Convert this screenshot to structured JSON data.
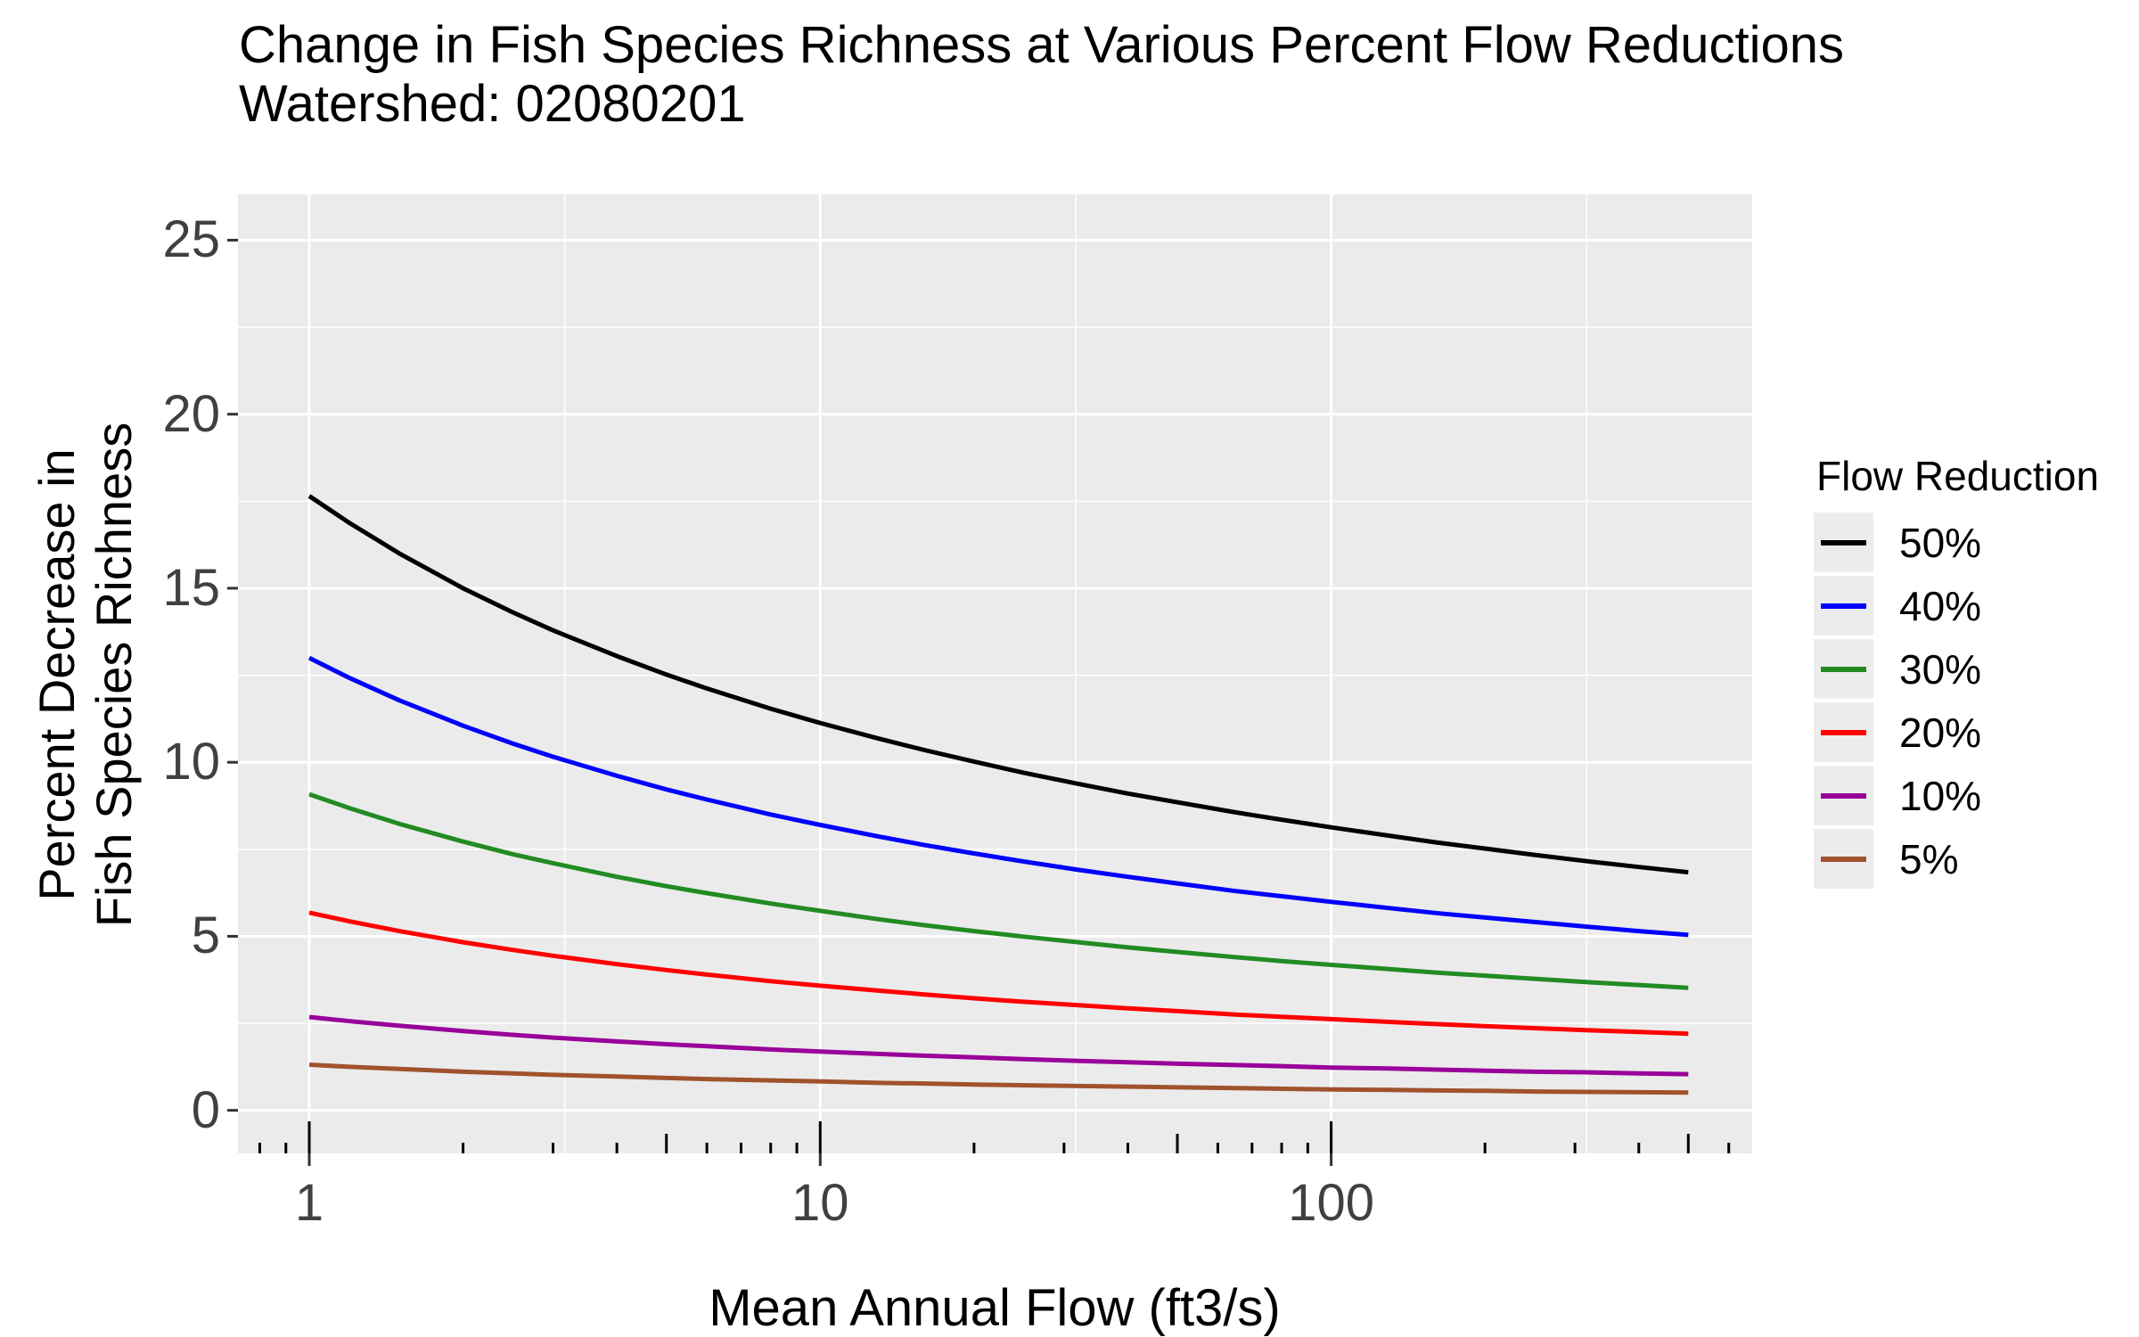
{
  "title": "Change in Fish Species Richness at Various Percent Flow Reductions",
  "subtitle": "Watershed: 02080201",
  "x_axis": {
    "label": "Mean Annual Flow (ft3/s)",
    "scale": "log10",
    "tick_labels": [
      "1",
      "10",
      "100"
    ],
    "tick_values": [
      1,
      10,
      100
    ],
    "minor_gridline_values": [
      3.1623,
      31.623,
      316.23
    ],
    "log_ticks": {
      "long": [
        1,
        10,
        100
      ],
      "medium": [
        5,
        50,
        500
      ],
      "short": [
        0.8,
        0.9,
        2,
        3,
        4,
        6,
        7,
        8,
        9,
        20,
        30,
        40,
        60,
        70,
        80,
        90,
        200,
        300,
        400,
        600
      ]
    },
    "range": [
      0.725,
      660
    ]
  },
  "y_axis": {
    "label_line1": "Percent Decrease in",
    "label_line2": "Fish Species Richness",
    "tick_labels": [
      "0",
      "5",
      "10",
      "15",
      "20",
      "25"
    ],
    "tick_values": [
      0,
      5,
      10,
      15,
      20,
      25
    ],
    "minor_gridline_values": [
      2.5,
      7.5,
      12.5,
      17.5,
      22.5
    ],
    "range": [
      -1.3,
      26.3
    ]
  },
  "legend": {
    "title": "Flow Reduction",
    "entries": [
      {
        "label": "50%",
        "color": "#000000"
      },
      {
        "label": "40%",
        "color": "#0000FF"
      },
      {
        "label": "30%",
        "color": "#228B22"
      },
      {
        "label": "20%",
        "color": "#FF0000"
      },
      {
        "label": "10%",
        "color": "#990099"
      },
      {
        "label": "5%",
        "color": "#A0522D"
      }
    ]
  },
  "colors": {
    "panel_background": "#EBEBEB",
    "gridline": "#FFFFFF",
    "tick_text": "#404040",
    "axis_tick": "#333333",
    "log_tick": "#000000",
    "legend_key_background": "#ECECEC"
  },
  "chart_data": {
    "type": "line",
    "title": "Change in Fish Species Richness at Various Percent Flow Reductions",
    "subtitle": "Watershed: 02080201",
    "xlabel": "Mean Annual Flow (ft3/s)",
    "ylabel": "Percent Decrease in Fish Species Richness",
    "x_scale": "log10",
    "xlim": [
      0.725,
      660
    ],
    "ylim": [
      -1.3,
      26.3
    ],
    "grid": true,
    "legend_position": "right",
    "x": [
      1,
      1.2,
      1.5,
      2,
      2.5,
      3,
      4,
      5,
      6,
      8,
      10,
      13,
      16,
      20,
      25,
      32,
      40,
      50,
      65,
      80,
      100,
      130,
      160,
      200,
      250,
      320,
      400,
      500
    ],
    "series": [
      {
        "name": "50%",
        "color": "#000000",
        "values": [
          17.65,
          16.87,
          16.0,
          15.0,
          14.31,
          13.79,
          13.05,
          12.52,
          12.12,
          11.54,
          11.13,
          10.68,
          10.35,
          10.02,
          9.7,
          9.38,
          9.1,
          8.85,
          8.56,
          8.35,
          8.13,
          7.89,
          7.7,
          7.52,
          7.34,
          7.15,
          6.99,
          6.84
        ]
      },
      {
        "name": "40%",
        "color": "#0000FF",
        "values": [
          13.0,
          12.42,
          11.78,
          11.05,
          10.54,
          10.16,
          9.61,
          9.22,
          8.93,
          8.5,
          8.2,
          7.87,
          7.62,
          7.38,
          7.15,
          6.91,
          6.71,
          6.52,
          6.3,
          6.15,
          5.99,
          5.81,
          5.67,
          5.54,
          5.41,
          5.27,
          5.15,
          5.04
        ]
      },
      {
        "name": "30%",
        "color": "#228B22",
        "values": [
          9.08,
          8.68,
          8.23,
          7.72,
          7.36,
          7.1,
          6.71,
          6.44,
          6.24,
          5.94,
          5.73,
          5.49,
          5.32,
          5.15,
          4.99,
          4.83,
          4.68,
          4.55,
          4.4,
          4.29,
          4.18,
          4.06,
          3.96,
          3.87,
          3.78,
          3.68,
          3.6,
          3.52
        ]
      },
      {
        "name": "20%",
        "color": "#FF0000",
        "values": [
          5.68,
          5.43,
          5.15,
          4.83,
          4.61,
          4.44,
          4.2,
          4.03,
          3.9,
          3.71,
          3.58,
          3.44,
          3.33,
          3.22,
          3.12,
          3.02,
          2.93,
          2.85,
          2.75,
          2.69,
          2.62,
          2.54,
          2.48,
          2.42,
          2.36,
          2.3,
          2.25,
          2.2
        ]
      },
      {
        "name": "10%",
        "color": "#990099",
        "values": [
          2.68,
          2.56,
          2.43,
          2.28,
          2.17,
          2.09,
          1.98,
          1.9,
          1.84,
          1.75,
          1.69,
          1.62,
          1.57,
          1.52,
          1.47,
          1.42,
          1.38,
          1.34,
          1.3,
          1.27,
          1.23,
          1.2,
          1.17,
          1.14,
          1.11,
          1.09,
          1.06,
          1.04
        ]
      },
      {
        "name": "5%",
        "color": "#A0522D",
        "values": [
          1.31,
          1.25,
          1.19,
          1.11,
          1.06,
          1.02,
          0.97,
          0.93,
          0.9,
          0.86,
          0.83,
          0.79,
          0.77,
          0.74,
          0.72,
          0.7,
          0.68,
          0.66,
          0.64,
          0.62,
          0.6,
          0.59,
          0.57,
          0.56,
          0.54,
          0.53,
          0.52,
          0.51
        ]
      }
    ]
  }
}
